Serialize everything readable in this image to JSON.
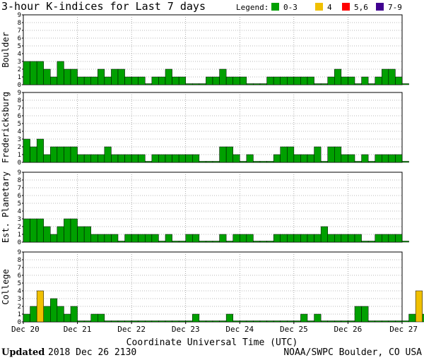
{
  "header": {
    "title": "3-hour K-indices for Last 7 days",
    "legend_label": "Legend:",
    "legend": [
      {
        "label": "0-3",
        "color": "#00a000"
      },
      {
        "label": "4",
        "color": "#f0c000"
      },
      {
        "label": "5,6",
        "color": "#ff0000"
      },
      {
        "label": "7-9",
        "color": "#400090"
      }
    ]
  },
  "footer": {
    "updated_label": "Updated",
    "updated_value": "2018 Dec 26 2130",
    "source": "NOAA/SWPC Boulder, CO USA"
  },
  "chart_data": {
    "type": "bar",
    "title": "3-hour K-indices for Last 7 days",
    "xlabel": "Coordinate Universal Time (UTC)",
    "x_ticks": [
      "Dec 20",
      "Dec 21",
      "Dec 22",
      "Dec 23",
      "Dec 24",
      "Dec 25",
      "Dec 26",
      "Dec 27"
    ],
    "ylim": [
      0,
      9
    ],
    "y_ticks": [
      0,
      1,
      2,
      3,
      4,
      5,
      6,
      7,
      8,
      9
    ],
    "intervals_per_day": 8,
    "panels": [
      {
        "name": "Boulder",
        "values": [
          3,
          3,
          3,
          2,
          1,
          3,
          2,
          2,
          1,
          1,
          1,
          2,
          1,
          2,
          2,
          1,
          1,
          1,
          0,
          1,
          1,
          2,
          1,
          1,
          0,
          0,
          0,
          1,
          1,
          2,
          1,
          1,
          1,
          0,
          0,
          0,
          1,
          1,
          1,
          1,
          1,
          1,
          1,
          0,
          0,
          1,
          2,
          1,
          1,
          0,
          1,
          0,
          1,
          2,
          2,
          1,
          0
        ]
      },
      {
        "name": "Fredericksburg",
        "values": [
          3,
          2,
          3,
          1,
          2,
          2,
          2,
          2,
          1,
          1,
          1,
          1,
          2,
          1,
          1,
          1,
          1,
          1,
          0,
          1,
          1,
          1,
          1,
          1,
          1,
          1,
          0,
          0,
          0,
          2,
          2,
          1,
          0,
          1,
          0,
          0,
          0,
          1,
          2,
          2,
          1,
          1,
          1,
          2,
          0,
          2,
          2,
          1,
          1,
          0,
          1,
          0,
          1,
          1,
          1,
          1,
          0
        ]
      },
      {
        "name": "Est. Planetary",
        "values": [
          3,
          3,
          3,
          2,
          1,
          2,
          3,
          3,
          2,
          2,
          1,
          1,
          1,
          1,
          0,
          1,
          1,
          1,
          1,
          1,
          0,
          1,
          0,
          0,
          1,
          1,
          0,
          0,
          0,
          1,
          0,
          1,
          1,
          1,
          0,
          0,
          0,
          1,
          1,
          1,
          1,
          1,
          1,
          1,
          2,
          1,
          1,
          1,
          1,
          1,
          0,
          0,
          1,
          1,
          1,
          1,
          0
        ]
      },
      {
        "name": "College",
        "values": [
          1,
          2,
          4,
          2,
          3,
          2,
          1,
          2,
          0,
          0,
          1,
          1,
          0,
          0,
          0,
          0,
          0,
          0,
          0,
          0,
          0,
          0,
          0,
          0,
          0,
          1,
          0,
          0,
          0,
          0,
          1,
          0,
          0,
          0,
          0,
          0,
          0,
          0,
          0,
          0,
          0,
          1,
          0,
          1,
          0,
          0,
          0,
          0,
          0,
          2,
          2,
          0,
          0,
          0,
          0,
          0,
          0,
          1,
          4,
          1,
          0
        ]
      }
    ]
  }
}
